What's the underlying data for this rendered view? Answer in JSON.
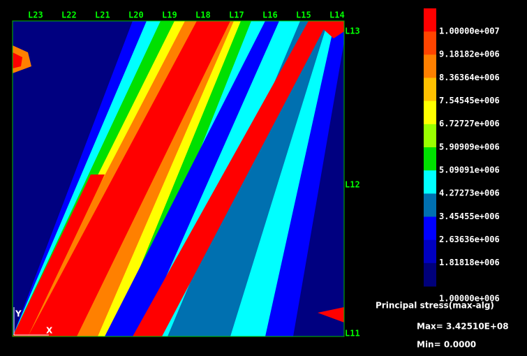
{
  "top_labels": [
    "L23",
    "L22",
    "L21",
    "L20",
    "L19",
    "L18",
    "L17",
    "L16",
    "L15",
    "L14"
  ],
  "right_labels": [
    "L13",
    "L12",
    "L11"
  ],
  "axes": {
    "y": "Y",
    "x": "X"
  },
  "legend": [
    {
      "label": "1.00000e+007",
      "color": "#ff0000"
    },
    {
      "label": "9.18182e+006",
      "color": "#ff4400"
    },
    {
      "label": "8.36364e+006",
      "color": "#ff8000"
    },
    {
      "label": "7.54545e+006",
      "color": "#ffc000"
    },
    {
      "label": "6.72727e+006",
      "color": "#ffff00"
    },
    {
      "label": "5.90909e+006",
      "color": "#99ff00"
    },
    {
      "label": "5.09091e+006",
      "color": "#00e000"
    },
    {
      "label": "4.27273e+006",
      "color": "#00ffff"
    },
    {
      "label": "3.45455e+006",
      "color": "#0070b0"
    },
    {
      "label": "2.63636e+006",
      "color": "#0000ff"
    },
    {
      "label": "1.81818e+006",
      "color": "#0000c0"
    },
    {
      "label": "1.00000e+006",
      "color": "#00007a"
    }
  ],
  "info": {
    "title": "Principal stress(max-alg)",
    "max": "Max= 3.42510E+08",
    "min": "Min= 0.0000"
  }
}
